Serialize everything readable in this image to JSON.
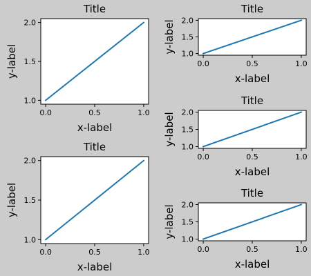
{
  "figure": {
    "background": "#cccccc"
  },
  "chart_data": [
    {
      "type": "line",
      "title": "Title",
      "xlabel": "x-label",
      "ylabel": "y-label",
      "x": [
        0,
        1
      ],
      "series": [
        {
          "values": [
            1,
            2
          ],
          "color": "#1f77b4"
        }
      ],
      "xlim": [
        -0.05,
        1.05
      ],
      "ylim": [
        0.95,
        2.05
      ],
      "xticks": [
        0.0,
        0.5,
        1.0
      ],
      "xtick_labels": [
        "0.0",
        "0.5",
        "1.0"
      ],
      "yticks": [
        1.0,
        1.5,
        2.0
      ],
      "ytick_labels": [
        "1.0",
        "1.5",
        "2.0"
      ],
      "grid": false
    },
    {
      "type": "line",
      "title": "Title",
      "xlabel": "x-label",
      "ylabel": "y-label",
      "x": [
        0,
        1
      ],
      "series": [
        {
          "values": [
            1,
            2
          ],
          "color": "#1f77b4"
        }
      ],
      "xlim": [
        -0.05,
        1.05
      ],
      "ylim": [
        0.95,
        2.05
      ],
      "xticks": [
        0.0,
        0.5,
        1.0
      ],
      "xtick_labels": [
        "0.0",
        "0.5",
        "1.0"
      ],
      "yticks": [
        1.0,
        1.5,
        2.0
      ],
      "ytick_labels": [
        "1.0",
        "1.5",
        "2.0"
      ],
      "grid": false
    },
    {
      "type": "line",
      "title": "Title",
      "xlabel": "x-label",
      "ylabel": "y-label",
      "x": [
        0,
        1
      ],
      "series": [
        {
          "values": [
            1,
            2
          ],
          "color": "#1f77b4"
        }
      ],
      "xlim": [
        -0.05,
        1.05
      ],
      "ylim": [
        0.95,
        2.05
      ],
      "xticks": [
        0.0,
        0.5,
        1.0
      ],
      "xtick_labels": [
        "0.0",
        "0.5",
        "1.0"
      ],
      "yticks": [
        1.0,
        1.5,
        2.0
      ],
      "ytick_labels": [
        "1.0",
        "1.5",
        "2.0"
      ],
      "grid": false
    },
    {
      "type": "line",
      "title": "Title",
      "xlabel": "x-label",
      "ylabel": "y-label",
      "x": [
        0,
        1
      ],
      "series": [
        {
          "values": [
            1,
            2
          ],
          "color": "#1f77b4"
        }
      ],
      "xlim": [
        -0.05,
        1.05
      ],
      "ylim": [
        0.95,
        2.05
      ],
      "xticks": [
        0.0,
        0.5,
        1.0
      ],
      "xtick_labels": [
        "0.0",
        "0.5",
        "1.0"
      ],
      "yticks": [
        1.0,
        1.5,
        2.0
      ],
      "ytick_labels": [
        "1.0",
        "1.5",
        "2.0"
      ],
      "grid": false
    },
    {
      "type": "line",
      "title": "Title",
      "xlabel": "x-label",
      "ylabel": "y-label",
      "x": [
        0,
        1
      ],
      "series": [
        {
          "values": [
            1,
            2
          ],
          "color": "#1f77b4"
        }
      ],
      "xlim": [
        -0.05,
        1.05
      ],
      "ylim": [
        0.95,
        2.05
      ],
      "xticks": [
        0.0,
        0.5,
        1.0
      ],
      "xtick_labels": [
        "0.0",
        "0.5",
        "1.0"
      ],
      "yticks": [
        1.0,
        1.5,
        2.0
      ],
      "ytick_labels": [
        "1.0",
        "1.5",
        "2.0"
      ],
      "grid": false
    }
  ]
}
